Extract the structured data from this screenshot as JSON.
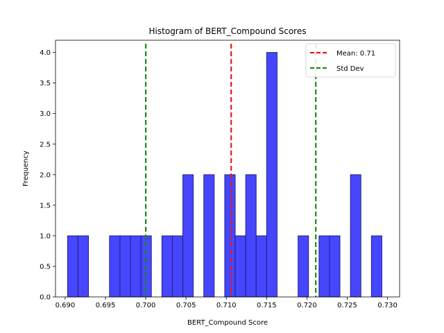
{
  "chart_data": {
    "type": "bar",
    "title": "Histogram of BERT_Compound Scores",
    "xlabel": "BERT_Compound Score",
    "ylabel": "Frequency",
    "xlim": [
      0.6888,
      0.7315
    ],
    "ylim": [
      0,
      4.2
    ],
    "xticks": [
      "0.690",
      "0.695",
      "0.700",
      "0.705",
      "0.710",
      "0.715",
      "0.720",
      "0.725",
      "0.730"
    ],
    "xtick_values": [
      0.69,
      0.695,
      0.7,
      0.705,
      0.71,
      0.715,
      0.72,
      0.725,
      0.73
    ],
    "yticks": [
      "0.0",
      "0.5",
      "1.0",
      "1.5",
      "2.0",
      "2.5",
      "3.0",
      "3.5",
      "4.0"
    ],
    "ytick_values": [
      0,
      0.5,
      1.0,
      1.5,
      2.0,
      2.5,
      3.0,
      3.5,
      4.0
    ],
    "bins": {
      "start": 0.6903,
      "width": 0.0013,
      "counts": [
        1,
        1,
        0,
        0,
        1,
        1,
        1,
        1,
        0,
        1,
        1,
        2,
        0,
        2,
        0,
        2,
        1,
        2,
        1,
        4,
        0,
        0,
        1,
        0,
        1,
        1,
        0,
        2,
        0,
        1
      ]
    },
    "bar_color": "#4646ff",
    "bar_edge_color": "#1a1a6e",
    "reference_lines": [
      {
        "name": "Mean: 0.71",
        "x": 0.7106,
        "color": "#e41a1c"
      },
      {
        "name": "Std Dev",
        "x": 0.7,
        "color": "#1a8a1a"
      },
      {
        "name": "",
        "x": 0.7211,
        "color": "#1a8a1a"
      }
    ],
    "legend": {
      "placement": "top-right",
      "entries": [
        {
          "label": "Mean: 0.71",
          "color": "#e41a1c"
        },
        {
          "label": "Std Dev",
          "color": "#1a8a1a"
        }
      ]
    },
    "grid": false
  }
}
